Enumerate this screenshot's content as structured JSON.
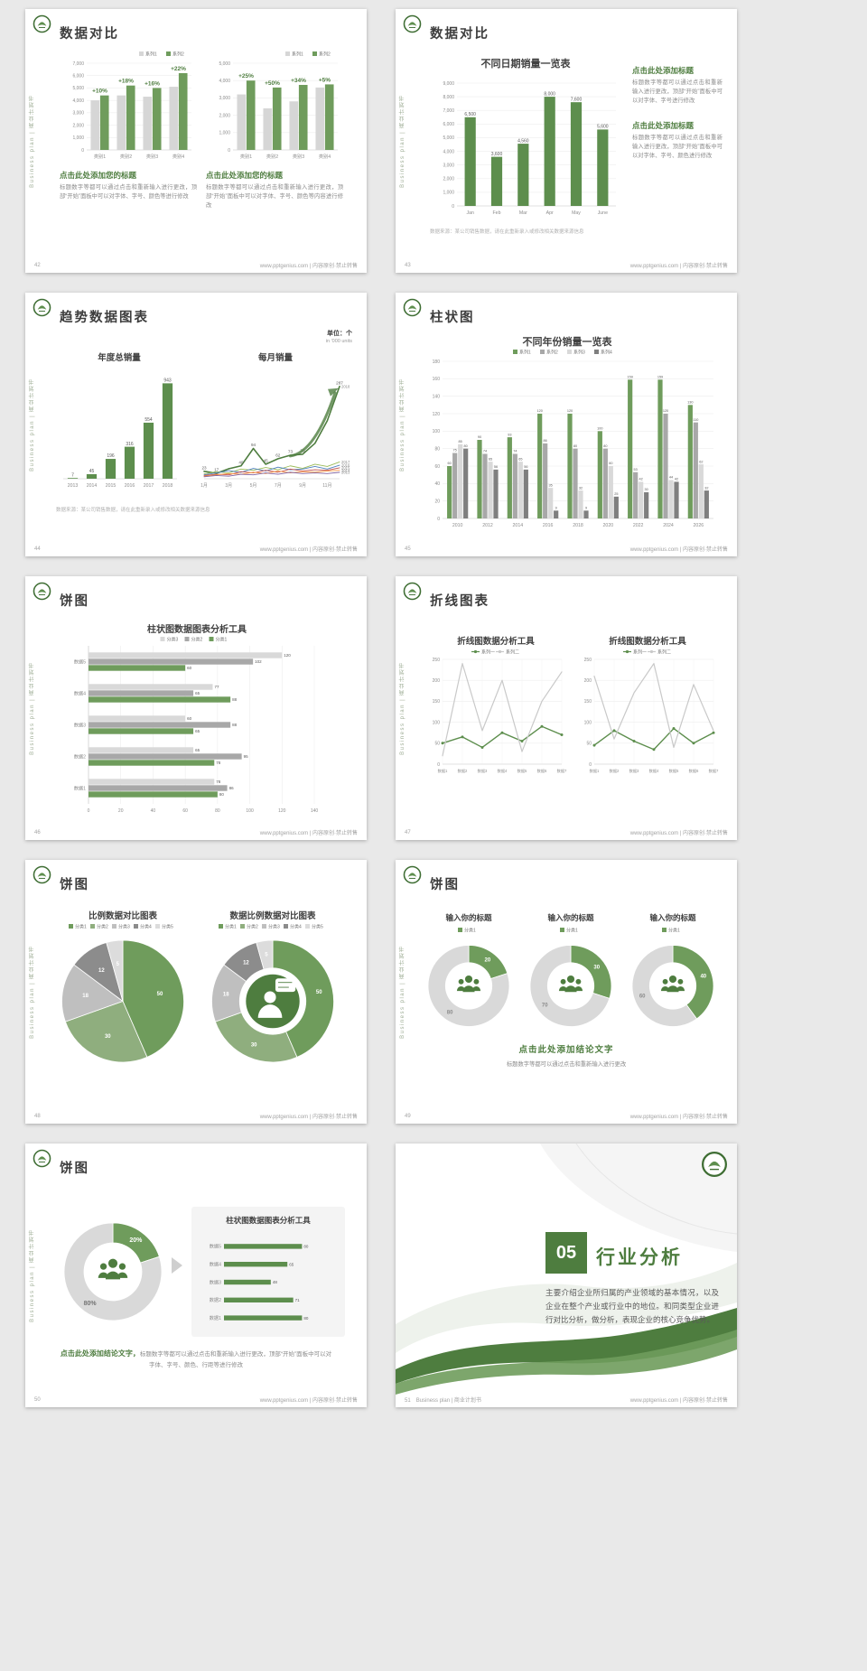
{
  "common": {
    "side_text": "Business plan | 商业计划书",
    "footer_url": "www.pptgenius.com | 内容原创·禁止转售",
    "accent": "#4e7d3f"
  },
  "slides": {
    "s42": {
      "page": "42",
      "title": "数据对比",
      "charts": [
        {
          "type": "column",
          "ymax": 7000,
          "ystep": 1000,
          "categories": [
            "类别1",
            "类别2",
            "类别3",
            "类别4"
          ],
          "series": [
            {
              "name": "系列1",
              "color": "#d6d6d6",
              "values": [
                4000,
                4400,
                4300,
                5100
              ]
            },
            {
              "name": "系列2",
              "color": "#6f9c5c",
              "values": [
                4400,
                5200,
                5000,
                6200
              ]
            }
          ],
          "group_labels": [
            "+10%",
            "+18%",
            "+16%",
            "+22%"
          ],
          "legend": "right"
        },
        {
          "type": "column",
          "ymax": 5000,
          "ystep": 1000,
          "categories": [
            "类别1",
            "类别2",
            "类别3",
            "类别4"
          ],
          "series": [
            {
              "name": "系列1",
              "color": "#d6d6d6",
              "values": [
                3200,
                2400,
                2800,
                3600
              ]
            },
            {
              "name": "系列2",
              "color": "#6f9c5c",
              "values": [
                4000,
                3600,
                3750,
                3780
              ]
            }
          ],
          "group_labels": [
            "+25%",
            "+50%",
            "+34%",
            "+5%"
          ],
          "legend": "right"
        }
      ],
      "blocks": [
        {
          "heading": "点击此处添加您的标题",
          "body": "标题数字等都可以通过点击和重新输入进行更改，顶部“开始”面板中可以对字体、字号、颜色等进行修改"
        },
        {
          "heading": "点击此处添加您的标题",
          "body": "标题数字等都可以通过点击和重新输入进行更改，顶部“开始”面板中可以对字体、字号、颜色等内容进行修改"
        }
      ]
    },
    "s43": {
      "page": "43",
      "title": "数据对比",
      "chart_title": "不同日期销量一览表",
      "charts": [
        {
          "type": "column",
          "ymax": 9000,
          "ystep": 1000,
          "categories": [
            "Jan",
            "Feb",
            "Mar",
            "Apr",
            "May",
            "June"
          ],
          "series": [
            {
              "name": "销量",
              "color": "#5d8e4d",
              "values": [
                6500,
                3600,
                4560,
                8000,
                7600,
                5600
              ]
            }
          ],
          "value_labels": true,
          "vl_size": 5,
          "max_bw": 13
        }
      ],
      "blocks": [
        {
          "heading": "点击此处添加标题",
          "body": "标题数字等都可以通过点击和重新输入进行更改，顶部“开始”面板中可以对字体、字号进行修改"
        },
        {
          "heading": "点击此处添加标题",
          "body": "标题数字等都可以通过点击和重新输入进行更改，顶部“开始”面板中可以对字体、字号、颜色进行修改"
        }
      ],
      "source_note": "数据来源：某公司销售数据，请在此重新录入或修改相关数据来源信息"
    },
    "s44": {
      "page": "44",
      "title": "趋势数据图表",
      "unit_label": "单位：个",
      "unit_sub": "in '000 units",
      "chart_titles": [
        "年度总销量",
        "每月销量"
      ],
      "charts": [
        {
          "type": "column",
          "hide_yaxis": true,
          "ymax": 1000,
          "ystep": 200,
          "categories": [
            "2013",
            "2014",
            "2015",
            "2016",
            "2017",
            "2018"
          ],
          "series": [
            {
              "name": "年度总销量",
              "color": "#5d8e4d",
              "values": [
                7,
                45,
                196,
                316,
                554,
                943
              ]
            }
          ],
          "value_labels": true,
          "vl_size": 5,
          "max_bw": 12
        },
        {
          "type": "line",
          "hide_yaxis": true,
          "ymax": 320,
          "points": 12,
          "rpad": 16,
          "xlabels": [
            "1月",
            null,
            "3月",
            null,
            "5月",
            null,
            "7月",
            null,
            "9月",
            null,
            "11月",
            null
          ],
          "series": [
            {
              "name": "2018",
              "color": "#4e7d3f",
              "width": 1.6,
              "values": [
                23,
                17,
                31,
                40,
                94,
                45,
                62,
                73,
                76,
                110,
                180,
                287
              ],
              "labels": [
                "23",
                "17",
                null,
                "40",
                "94",
                "45",
                "62",
                "73",
                "76",
                null,
                null,
                "287"
              ],
              "end_label": "2018"
            },
            {
              "name": "2017",
              "color": "#9bbb59",
              "width": 0.9,
              "values": [
                15,
                22,
                18,
                30,
                26,
                35,
                28,
                40,
                32,
                45,
                38,
                52
              ],
              "end_label": "2017"
            },
            {
              "name": "2016",
              "color": "#4f81bd",
              "width": 0.9,
              "values": [
                12,
                18,
                25,
                20,
                32,
                24,
                36,
                28,
                30,
                38,
                30,
                42
              ],
              "end_label": "2016"
            },
            {
              "name": "2015",
              "color": "#c0504d",
              "width": 0.9,
              "values": [
                10,
                14,
                12,
                22,
                18,
                26,
                20,
                30,
                24,
                28,
                26,
                34
              ],
              "end_label": "2015"
            },
            {
              "name": "2014",
              "color": "#f79646",
              "width": 0.9,
              "values": [
                8,
                12,
                16,
                14,
                20,
                16,
                24,
                18,
                22,
                20,
                24,
                26
              ],
              "end_label": "2014"
            },
            {
              "name": "2013",
              "color": "#8064a2",
              "width": 0.9,
              "values": [
                6,
                10,
                8,
                14,
                12,
                18,
                14,
                20,
                16,
                18,
                16,
                20
              ],
              "end_label": "2013"
            }
          ],
          "arrow": true
        }
      ],
      "source_note": "数据来源：某公司销售数据，请在此重新录入或修改相关数据来源信息"
    },
    "s45": {
      "page": "45",
      "title": "柱状图",
      "chart_title": "不同年份销量一览表",
      "charts": [
        {
          "type": "column",
          "ymax": 180,
          "ystep": 20,
          "categories": [
            "2010",
            "2012",
            "2014",
            "2016",
            "2018",
            "2020",
            "2022",
            "2024",
            "2026"
          ],
          "series": [
            {
              "name": "系列1",
              "color": "#6f9c5c",
              "values": [
                60,
                90,
                93,
                120,
                120,
                100,
                159,
                159,
                130
              ]
            },
            {
              "name": "系列2",
              "color": "#a8a8a8",
              "values": [
                75,
                74,
                74,
                86,
                80,
                80,
                53,
                120,
                110
              ]
            },
            {
              "name": "系列3",
              "color": "#d9d9d9",
              "values": [
                85,
                65,
                65,
                35,
                32,
                60,
                42,
                44,
                62
              ]
            },
            {
              "name": "系列4",
              "color": "#7f7f7f",
              "values": [
                80,
                56,
                56,
                9,
                9,
                25,
                30,
                42,
                32
              ]
            }
          ],
          "value_labels": true,
          "vl_size": 3.8,
          "legend": "center",
          "max_bw": 8
        }
      ]
    },
    "s46": {
      "page": "46",
      "title": "饼图",
      "chart_title": "柱状图数据图表分析工具",
      "charts": [
        {
          "type": "hbar",
          "xmax": 140,
          "xstep": 20,
          "categories": [
            "数据5",
            "数据4",
            "数据3",
            "数据2",
            "数据1"
          ],
          "series": [
            {
              "name": "分类3",
              "color": "#d9d9d9",
              "values": [
                120,
                77,
                60,
                65,
                78
              ]
            },
            {
              "name": "分类2",
              "color": "#a8a8a8",
              "values": [
                102,
                65,
                88,
                95,
                86
              ]
            },
            {
              "name": "分类1",
              "color": "#6f9c5c",
              "values": [
                60,
                88,
                65,
                78,
                80
              ]
            }
          ],
          "value_labels": true,
          "legend": "center",
          "legend_iw": 27
        }
      ]
    },
    "s47": {
      "page": "47",
      "title": "折线图表",
      "chart_titles": [
        "折线图数据分析工具",
        "折线图数据分析工具"
      ],
      "charts": [
        {
          "type": "line",
          "ymax": 250,
          "ystep": 50,
          "points": 7,
          "xl_size": 4.2,
          "xlabels": [
            "数据1",
            "数据2",
            "数据3",
            "数据4",
            "数据5",
            "数据6",
            "数据7"
          ],
          "series": [
            {
              "name": "系列一",
              "color": "#5d8e4d",
              "width": 1.4,
              "markers": true,
              "values": [
                50,
                65,
                40,
                75,
                55,
                90,
                70
              ]
            },
            {
              "name": "系列二",
              "color": "#c9c9c9",
              "width": 1.2,
              "values": [
                20,
                240,
                80,
                200,
                30,
                150,
                220
              ]
            }
          ],
          "legend": "center",
          "legend_iw": 27,
          "legend_style": "line"
        },
        {
          "type": "line",
          "ymax": 250,
          "ystep": 50,
          "points": 7,
          "xl_size": 4.2,
          "xlabels": [
            "数据1",
            "数据2",
            "数据3",
            "数据4",
            "数据5",
            "数据6",
            "数据7"
          ],
          "series": [
            {
              "name": "系列一",
              "color": "#5d8e4d",
              "width": 1.4,
              "markers": true,
              "values": [
                45,
                80,
                55,
                35,
                85,
                50,
                75
              ]
            },
            {
              "name": "系列二",
              "color": "#c9c9c9",
              "width": 1.2,
              "values": [
                210,
                60,
                170,
                240,
                40,
                190,
                80
              ]
            }
          ],
          "legend": "center",
          "legend_iw": 27,
          "legend_style": "line"
        }
      ]
    },
    "s48": {
      "page": "48",
      "title": "饼图",
      "chart_titles": [
        "比例数据对比图表",
        "数据比例数据对比图表"
      ],
      "charts": [
        {
          "type": "pie",
          "values": [
            50,
            30,
            18,
            12,
            5
          ],
          "labels": [
            "50",
            "30",
            "18",
            "12",
            "5"
          ],
          "colors": [
            "#6f9c5c",
            "#8fae7e",
            "#bfbfbf",
            "#8c8c8c",
            "#dcdcdc"
          ],
          "legend_labels": [
            "分类1",
            "分类2",
            "分类3",
            "分类4",
            "分类5"
          ],
          "legend": "center",
          "legend_iw": 24
        },
        {
          "type": "pie",
          "inner": 0.55,
          "values": [
            50,
            30,
            18,
            12,
            5
          ],
          "labels": [
            "50",
            "30",
            "18",
            "12",
            "5"
          ],
          "colors": [
            "#6f9c5c",
            "#8fae7e",
            "#bfbfbf",
            "#8c8c8c",
            "#dcdcdc"
          ],
          "legend_labels": [
            "分类1",
            "分类2",
            "分类3",
            "分类4",
            "分类5"
          ],
          "legend": "center",
          "legend_iw": 24,
          "center_icon": "person-badge"
        }
      ]
    },
    "s49": {
      "page": "49",
      "title": "饼图",
      "chart_titles": [
        "输入你的标题",
        "输入你的标题",
        "输入你的标题"
      ],
      "charts": [
        {
          "type": "pie",
          "inner": 0.58,
          "values": [
            20,
            80
          ],
          "labels": [
            "20",
            "80"
          ],
          "colors": [
            "#6f9c5c",
            "#d9d9d9"
          ],
          "label_colors": [
            "#ffffff",
            "#8c8c8c"
          ],
          "legend_labels": [
            "分类1"
          ],
          "legend": "center",
          "legend_iw": 24,
          "center_icon": "people"
        },
        {
          "type": "pie",
          "inner": 0.58,
          "values": [
            30,
            70
          ],
          "labels": [
            "30",
            "70"
          ],
          "colors": [
            "#6f9c5c",
            "#d9d9d9"
          ],
          "label_colors": [
            "#ffffff",
            "#8c8c8c"
          ],
          "legend_labels": [
            "分类1"
          ],
          "legend": "center",
          "legend_iw": 24,
          "center_icon": "people"
        },
        {
          "type": "pie",
          "inner": 0.58,
          "values": [
            40,
            60
          ],
          "labels": [
            "40",
            "60"
          ],
          "colors": [
            "#6f9c5c",
            "#d9d9d9"
          ],
          "label_colors": [
            "#ffffff",
            "#8c8c8c"
          ],
          "legend_labels": [
            "分类1"
          ],
          "legend": "center",
          "legend_iw": 24,
          "center_icon": "people"
        }
      ],
      "conclusion": "点击此处添加结论文字",
      "body": "标题数字等都可以通过点击和重新输入进行更改"
    },
    "s50": {
      "page": "50",
      "title": "饼图",
      "panel_title": "柱状图数据图表分析工具",
      "charts": [
        {
          "type": "pie",
          "inner": 0.6,
          "values": [
            20,
            80
          ],
          "labels": [
            "20%",
            "80%"
          ],
          "colors": [
            "#6f9c5c",
            "#d9d9d9"
          ],
          "label_colors": [
            "#ffffff",
            "#737373"
          ],
          "label_size": 7,
          "center_icon": "people"
        },
        {
          "type": "hbar",
          "hide_axis": true,
          "xmax": 100,
          "categories": [
            "数据5",
            "数据4",
            "数据3",
            "数据2",
            "数据1"
          ],
          "series": [
            {
              "name": "数据",
              "color": "#5d8e4d",
              "values": [
                80,
                65,
                48,
                71,
                80
              ]
            }
          ],
          "value_labels": true,
          "max_bh": 6
        }
      ],
      "conclusion": "点击此处添加结论文字，",
      "body": "标题数字等都可以通过点击和重新输入进行更改，顶部“开始”面板中可以对字体、字号、颜色、行距等进行修改"
    },
    "s51": {
      "page": "51",
      "number": "05",
      "title": "行业分析",
      "body": "主要介绍企业所归属的产业领域的基本情况，以及企业在整个产业或行业中的地位。和同类型企业进行对比分析，做分析，表现企业的核心竞争优势。",
      "footer_label": "Business plan | 商业计划书"
    }
  }
}
